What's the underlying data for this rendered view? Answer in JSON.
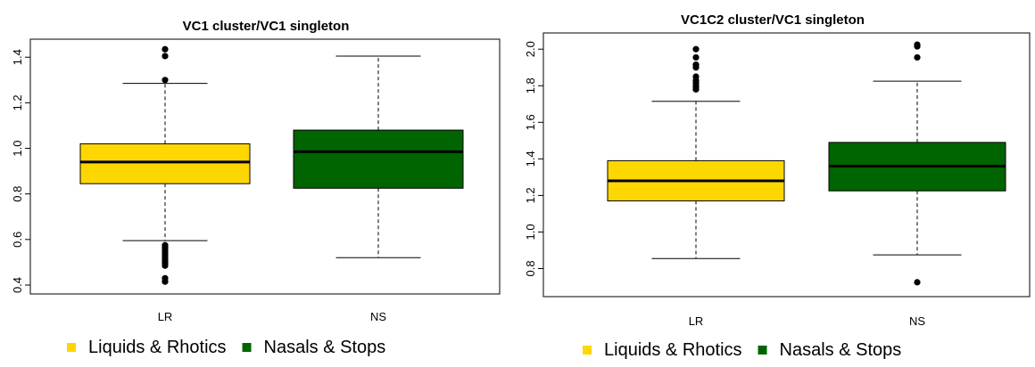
{
  "chart_data": [
    {
      "type": "box",
      "title": "VC1 cluster/VC1 singleton",
      "xlabel": "",
      "ylabel": "",
      "ylim": [
        0.4,
        1.44
      ],
      "yticks": [
        0.4,
        0.6,
        0.8,
        1.0,
        1.2,
        1.4
      ],
      "ytick_labels": [
        "0.4",
        "0.6",
        "0.8",
        "1.0",
        "1.2",
        "1.4"
      ],
      "grid": false,
      "categories": [
        "LR",
        "NS"
      ],
      "boxes": [
        {
          "category": "LR",
          "color": "#FFD700",
          "whisker_low": 0.595,
          "q1": 0.845,
          "median": 0.94,
          "q3": 1.02,
          "whisker_high": 1.285,
          "outliers": [
            1.435,
            1.405,
            1.3,
            0.575,
            0.565,
            0.555,
            0.545,
            0.535,
            0.525,
            0.515,
            0.505,
            0.495,
            0.485,
            0.43,
            0.415
          ]
        },
        {
          "category": "NS",
          "color": "#006400",
          "whisker_low": 0.52,
          "q1": 0.825,
          "median": 0.985,
          "q3": 1.08,
          "whisker_high": 1.405,
          "outliers": []
        }
      ],
      "legend": {
        "placement": "bottom",
        "entries": [
          {
            "label": "Liquids & Rhotics",
            "color": "#FFD700"
          },
          {
            "label": "Nasals & Stops",
            "color": "#006400"
          }
        ]
      }
    },
    {
      "type": "box",
      "title": "VC1C2 cluster/VC1 singleton",
      "xlabel": "",
      "ylabel": "",
      "ylim": [
        0.7,
        2.04
      ],
      "yticks": [
        0.8,
        1.0,
        1.2,
        1.4,
        1.6,
        1.8,
        2.0
      ],
      "ytick_labels": [
        "0.8",
        "1.0",
        "1.2",
        "1.4",
        "1.6",
        "1.8",
        "2.0"
      ],
      "grid": false,
      "categories": [
        "LR",
        "NS"
      ],
      "boxes": [
        {
          "category": "LR",
          "color": "#FFD700",
          "whisker_low": 0.855,
          "q1": 1.17,
          "median": 1.28,
          "q3": 1.39,
          "whisker_high": 1.715,
          "outliers": [
            2.0,
            1.955,
            1.915,
            1.9,
            1.85,
            1.83,
            1.815,
            1.8,
            1.79,
            1.78
          ]
        },
        {
          "category": "NS",
          "color": "#006400",
          "whisker_low": 0.875,
          "q1": 1.225,
          "median": 1.36,
          "q3": 1.49,
          "whisker_high": 1.825,
          "outliers": [
            2.025,
            2.015,
            1.955,
            0.725
          ]
        }
      ],
      "legend": {
        "placement": "bottom",
        "entries": [
          {
            "label": "Liquids & Rhotics",
            "color": "#FFD700"
          },
          {
            "label": "Nasals & Stops",
            "color": "#006400"
          }
        ]
      }
    }
  ]
}
